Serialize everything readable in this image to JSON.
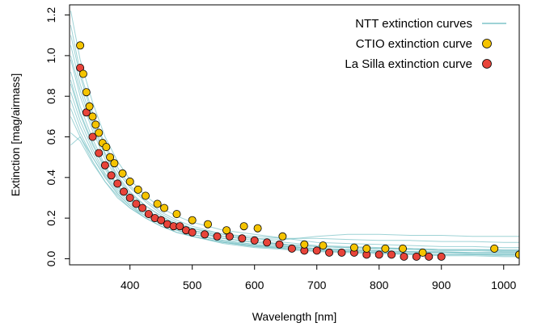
{
  "chart_data": {
    "type": "scatter",
    "title": "",
    "xlabel": "Wavelength [nm]",
    "ylabel": "Extinction [mag/airmass]",
    "xlim": [
      303,
      1025
    ],
    "ylim": [
      -0.03,
      1.25
    ],
    "x_ticks": [
      400,
      500,
      600,
      700,
      800,
      900,
      1000
    ],
    "y_ticks": [
      0.0,
      0.2,
      0.4,
      0.6,
      0.8,
      1.0,
      1.2
    ],
    "x_tick_labels": [
      "400",
      "500",
      "600",
      "700",
      "800",
      "900",
      "1000"
    ],
    "y_tick_labels": [
      "0.0",
      "0.2",
      "0.4",
      "0.6",
      "0.8",
      "1.0",
      "1.2"
    ],
    "grid": false,
    "legend_position": "top-right",
    "colors": {
      "ntt": "#7fc4c8",
      "ctio": "#f5c400",
      "lasilla": "#e8443a",
      "marker_edge": "#000000"
    },
    "series": [
      {
        "name": "NTT extinction curves",
        "kind": "line-family",
        "x": [
          305,
          320,
          340,
          360,
          380,
          400,
          425,
          450,
          475,
          500,
          550,
          600,
          650,
          700,
          750,
          800,
          850,
          900,
          950,
          1000,
          1025
        ],
        "curves": [
          [
            1.22,
            0.98,
            0.77,
            0.6,
            0.48,
            0.39,
            0.31,
            0.25,
            0.21,
            0.18,
            0.14,
            0.12,
            0.1,
            0.08,
            0.075,
            0.07,
            0.065,
            0.06,
            0.06,
            0.055,
            0.055
          ],
          [
            1.15,
            0.92,
            0.72,
            0.56,
            0.45,
            0.36,
            0.29,
            0.23,
            0.19,
            0.16,
            0.12,
            0.1,
            0.08,
            0.065,
            0.06,
            0.055,
            0.05,
            0.045,
            0.045,
            0.04,
            0.04
          ],
          [
            1.05,
            0.86,
            0.67,
            0.52,
            0.41,
            0.33,
            0.26,
            0.21,
            0.17,
            0.14,
            0.1,
            0.08,
            0.065,
            0.05,
            0.045,
            0.04,
            0.035,
            0.03,
            0.03,
            0.03,
            0.03
          ],
          [
            0.98,
            0.8,
            0.63,
            0.49,
            0.39,
            0.31,
            0.24,
            0.19,
            0.15,
            0.12,
            0.085,
            0.065,
            0.05,
            0.04,
            0.035,
            0.03,
            0.025,
            0.02,
            0.02,
            0.02,
            0.02
          ],
          [
            0.92,
            0.75,
            0.59,
            0.46,
            0.36,
            0.29,
            0.23,
            0.18,
            0.14,
            0.11,
            0.075,
            0.055,
            0.045,
            0.035,
            0.03,
            0.025,
            0.02,
            0.015,
            0.015,
            0.01,
            0.01
          ],
          [
            0.88,
            0.72,
            0.57,
            0.45,
            0.36,
            0.3,
            0.24,
            0.2,
            0.17,
            0.15,
            0.12,
            0.11,
            0.1,
            0.1,
            0.095,
            0.09,
            0.09,
            0.085,
            0.085,
            0.08,
            0.08
          ],
          [
            0.86,
            0.71,
            0.56,
            0.44,
            0.35,
            0.29,
            0.23,
            0.19,
            0.16,
            0.14,
            0.11,
            0.1,
            0.095,
            0.11,
            0.12,
            0.12,
            0.115,
            0.115,
            0.11,
            0.11,
            0.11
          ],
          [
            0.82,
            0.68,
            0.54,
            0.42,
            0.34,
            0.28,
            0.22,
            0.18,
            0.15,
            0.13,
            0.1,
            0.08,
            0.07,
            0.06,
            0.055,
            0.05,
            0.05,
            0.045,
            0.045,
            0.045,
            0.045
          ],
          [
            0.78,
            0.65,
            0.52,
            0.41,
            0.33,
            0.27,
            0.21,
            0.17,
            0.14,
            0.12,
            0.09,
            0.07,
            0.06,
            0.05,
            0.045,
            0.04,
            0.035,
            0.03,
            0.03,
            0.03,
            0.03
          ],
          [
            0.74,
            0.62,
            0.5,
            0.4,
            0.32,
            0.26,
            0.2,
            0.16,
            0.13,
            0.11,
            0.08,
            0.06,
            0.05,
            0.04,
            0.035,
            0.03,
            0.025,
            0.02,
            0.02,
            0.02,
            0.02
          ],
          [
            0.7,
            0.6,
            0.48,
            0.38,
            0.31,
            0.25,
            0.2,
            0.16,
            0.13,
            0.11,
            0.08,
            0.065,
            0.055,
            0.045,
            0.04,
            0.035,
            0.03,
            0.03,
            0.025,
            0.025,
            0.025
          ],
          [
            0.62,
            0.58,
            0.47,
            0.38,
            0.3,
            0.25,
            0.2,
            0.16,
            0.13,
            0.11,
            0.08,
            0.06,
            0.05,
            0.04,
            0.035,
            0.03,
            0.025,
            0.02,
            0.02,
            0.015,
            0.015
          ],
          [
            0.56,
            0.6,
            0.5,
            0.4,
            0.32,
            0.26,
            0.21,
            0.17,
            0.14,
            0.12,
            0.09,
            0.07,
            0.06,
            0.05,
            0.045,
            0.04,
            0.035,
            0.035,
            0.03,
            0.03,
            0.03
          ],
          [
            1.1,
            0.9,
            0.7,
            0.55,
            0.43,
            0.35,
            0.28,
            0.22,
            0.18,
            0.15,
            0.11,
            0.09,
            0.07,
            0.06,
            0.055,
            0.05,
            0.045,
            0.04,
            0.04,
            0.035,
            0.035
          ],
          [
            1.0,
            0.83,
            0.65,
            0.51,
            0.4,
            0.32,
            0.26,
            0.21,
            0.17,
            0.14,
            0.1,
            0.08,
            0.07,
            0.06,
            0.055,
            0.05,
            0.05,
            0.045,
            0.045,
            0.04,
            0.04
          ]
        ]
      },
      {
        "name": "CTIO extinction curve",
        "kind": "points",
        "x": [
          320,
          325,
          330,
          335,
          340,
          345,
          350,
          356,
          362,
          368,
          375,
          388,
          400,
          413,
          425,
          444,
          455,
          475,
          500,
          525,
          555,
          583,
          605,
          645,
          680,
          710,
          760,
          780,
          810,
          838,
          870,
          985,
          1025
        ],
        "y": [
          1.05,
          0.91,
          0.82,
          0.75,
          0.7,
          0.66,
          0.62,
          0.57,
          0.55,
          0.5,
          0.47,
          0.42,
          0.38,
          0.34,
          0.31,
          0.27,
          0.25,
          0.22,
          0.19,
          0.17,
          0.14,
          0.16,
          0.15,
          0.11,
          0.07,
          0.065,
          0.055,
          0.05,
          0.05,
          0.05,
          0.03,
          0.05,
          0.02
        ]
      },
      {
        "name": "La Silla extinction curve",
        "kind": "points",
        "x": [
          320,
          330,
          340,
          350,
          360,
          370,
          380,
          390,
          400,
          410,
          420,
          430,
          440,
          450,
          460,
          470,
          480,
          490,
          500,
          520,
          540,
          560,
          580,
          600,
          620,
          640,
          660,
          680,
          700,
          720,
          740,
          760,
          780,
          800,
          820,
          840,
          860,
          880,
          900,
          1025
        ],
        "y": [
          0.94,
          0.72,
          0.6,
          0.52,
          0.46,
          0.41,
          0.37,
          0.33,
          0.3,
          0.27,
          0.25,
          0.22,
          0.2,
          0.19,
          0.17,
          0.16,
          0.16,
          0.14,
          0.13,
          0.12,
          0.11,
          0.11,
          0.1,
          0.09,
          0.08,
          0.07,
          0.05,
          0.04,
          0.04,
          0.03,
          0.03,
          0.03,
          0.02,
          0.02,
          0.02,
          0.01,
          0.01,
          0.01,
          0.01,
          0.02
        ]
      }
    ]
  }
}
